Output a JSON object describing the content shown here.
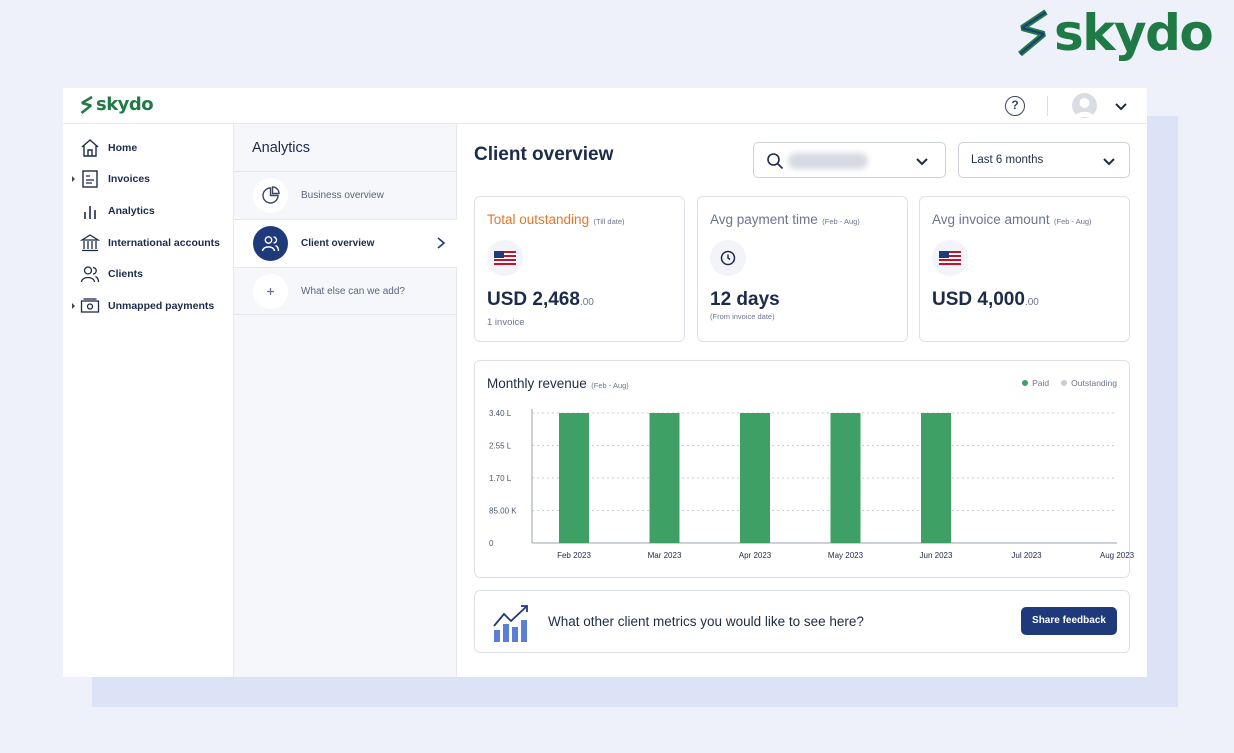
{
  "brand": {
    "name": "skydo",
    "primary_color": "#1f7a45",
    "accent_color": "#1f3a7a"
  },
  "topbar": {
    "help_icon": "?",
    "avatar_icon": "user-icon",
    "menu_icon": "chevron-down-icon"
  },
  "sidebar": {
    "items": [
      {
        "label": "Home",
        "icon": "home-icon",
        "expandable": false
      },
      {
        "label": "Invoices",
        "icon": "invoice-icon",
        "expandable": true
      },
      {
        "label": "Analytics",
        "icon": "bar-chart-icon",
        "expandable": false
      },
      {
        "label": "International accounts",
        "icon": "bank-icon",
        "expandable": false
      },
      {
        "label": "Clients",
        "icon": "users-icon",
        "expandable": false
      },
      {
        "label": "Unmapped payments",
        "icon": "cash-icon",
        "expandable": true
      }
    ]
  },
  "analytics_panel": {
    "title": "Analytics",
    "items": [
      {
        "label": "Business overview",
        "icon": "pie-chart-icon",
        "active": false
      },
      {
        "label": "Client overview",
        "icon": "users-icon",
        "active": true
      },
      {
        "label": "What else can we add?",
        "icon": "plus-icon",
        "active": false
      }
    ]
  },
  "main": {
    "title": "Client overview",
    "client_filter": {
      "value": "",
      "icon": "search-icon"
    },
    "period_filter": {
      "value": "Last 6 months"
    },
    "kpis": [
      {
        "title": "Total outstanding",
        "period": "(Till date)",
        "icon": "us-flag-icon",
        "amount": "USD 2,468",
        "decimals": ".00",
        "sub": "1 invoice",
        "title_color": "#e2762a"
      },
      {
        "title": "Avg payment time",
        "period": "(Feb - Aug)",
        "icon": "clock-icon",
        "amount": "12 days",
        "decimals": "",
        "sub": "(From invoice date)"
      },
      {
        "title": "Avg invoice amount",
        "period": "(Feb - Aug)",
        "icon": "us-flag-icon",
        "amount": "USD 4,000",
        "decimals": ".00",
        "sub": ""
      }
    ],
    "revenue_chart": {
      "title": "Monthly revenue",
      "period": "(Feb - Aug)"
    },
    "feedback": {
      "question": "What other client metrics you would like to see here?",
      "button": "Share feedback",
      "icon": "growth-chart-icon"
    }
  },
  "chart_data": {
    "type": "bar",
    "title": "Monthly revenue",
    "subtitle": "(Feb - Aug)",
    "categories": [
      "Feb 2023",
      "Mar 2023",
      "Apr 2023",
      "May 2023",
      "Jun 2023",
      "Jul 2023",
      "Aug 2023"
    ],
    "series": [
      {
        "name": "Paid",
        "color": "#3fa066",
        "values": [
          340000,
          340000,
          340000,
          340000,
          340000,
          0,
          0
        ]
      },
      {
        "name": "Outstanding",
        "color": "#c8ccd6",
        "values": [
          0,
          0,
          0,
          0,
          0,
          0,
          0
        ]
      }
    ],
    "y_ticks": [
      "0",
      "85.00 K",
      "1.70 L",
      "2.55 L",
      "3.40 L"
    ],
    "y_tick_values": [
      0,
      85000,
      170000,
      255000,
      340000
    ],
    "ylim": [
      0,
      340000
    ],
    "grid": true,
    "legend_position": "top-right"
  }
}
